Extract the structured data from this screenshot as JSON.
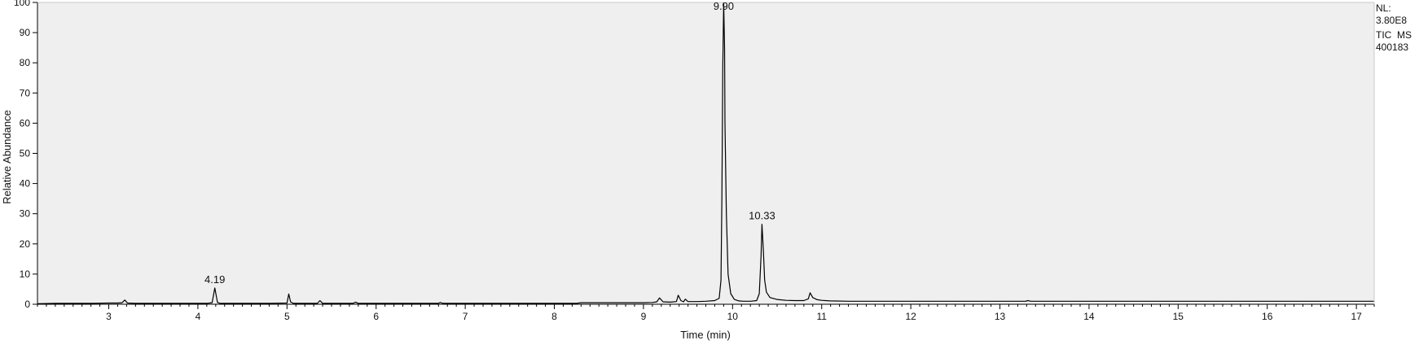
{
  "chart_data": {
    "type": "line",
    "xlabel": "Time (min)",
    "ylabel": "Relative Abundance",
    "xlim": [
      2.2,
      17.2
    ],
    "ylim": [
      0,
      100
    ],
    "xticks": [
      3,
      4,
      5,
      6,
      7,
      8,
      9,
      10,
      11,
      12,
      13,
      14,
      15,
      16,
      17
    ],
    "yticks": [
      0,
      10,
      20,
      30,
      40,
      50,
      60,
      70,
      80,
      90,
      100
    ],
    "grid": false,
    "plot_background": "#efefef",
    "line_color": "#000000",
    "info_text": [
      "NL:",
      "3.80E8",
      "TIC  MS",
      "400183"
    ],
    "peak_labels": [
      {
        "x": 4.19,
        "y": 5.4,
        "text": "4.19"
      },
      {
        "x": 9.9,
        "y": 100,
        "text": "9.90"
      },
      {
        "x": 10.33,
        "y": 26.5,
        "text": "10.33"
      }
    ],
    "series": [
      {
        "x": [
          2.2,
          2.4,
          2.6,
          2.8,
          3.0,
          3.1,
          3.15,
          3.18,
          3.21,
          3.3,
          3.5,
          3.7,
          3.9,
          4.1,
          4.16,
          4.19,
          4.22,
          4.25,
          4.5,
          4.8,
          5.0,
          5.02,
          5.04,
          5.07,
          5.2,
          5.34,
          5.37,
          5.4,
          5.6,
          5.74,
          5.77,
          5.8,
          6.0,
          6.5,
          6.7,
          6.72,
          6.75,
          7.0,
          7.5,
          8.0,
          8.25,
          8.3,
          8.5,
          8.8,
          9.0,
          9.1,
          9.15,
          9.18,
          9.22,
          9.3,
          9.37,
          9.39,
          9.42,
          9.45,
          9.47,
          9.5,
          9.6,
          9.7,
          9.8,
          9.85,
          9.87,
          9.88,
          9.89,
          9.9,
          9.91,
          9.915,
          9.93,
          9.95,
          9.98,
          10.02,
          10.07,
          10.12,
          10.2,
          10.27,
          10.3,
          10.32,
          10.33,
          10.345,
          10.36,
          10.38,
          10.42,
          10.5,
          10.6,
          10.7,
          10.8,
          10.85,
          10.87,
          10.9,
          10.95,
          11.0,
          11.1,
          11.3,
          11.6,
          12.0,
          12.5,
          13.0,
          13.29,
          13.31,
          13.35,
          14.0,
          15.0,
          16.0,
          17.0,
          17.2
        ],
        "values": [
          0.2,
          0.3,
          0.3,
          0.3,
          0.4,
          0.4,
          0.5,
          1.4,
          0.4,
          0.3,
          0.3,
          0.3,
          0.3,
          0.3,
          0.5,
          5.4,
          0.6,
          0.3,
          0.3,
          0.3,
          0.4,
          3.4,
          0.8,
          0.3,
          0.3,
          0.3,
          1.2,
          0.3,
          0.3,
          0.3,
          0.7,
          0.3,
          0.3,
          0.3,
          0.3,
          0.6,
          0.3,
          0.3,
          0.3,
          0.3,
          0.3,
          0.5,
          0.5,
          0.5,
          0.5,
          0.6,
          0.8,
          2.1,
          0.8,
          0.7,
          0.9,
          3.0,
          1.2,
          0.8,
          1.7,
          0.9,
          0.9,
          1.0,
          1.2,
          2.0,
          8.0,
          35.0,
          78.0,
          100,
          85.0,
          60.0,
          30.0,
          10.0,
          3.5,
          1.6,
          1.1,
          1.0,
          1.0,
          1.2,
          3.5,
          16.0,
          26.5,
          18.0,
          8.0,
          4.0,
          2.2,
          1.6,
          1.3,
          1.2,
          1.2,
          1.8,
          3.8,
          2.2,
          1.5,
          1.3,
          1.1,
          1.0,
          1.0,
          1.0,
          1.0,
          1.0,
          1.0,
          1.2,
          1.0,
          1.0,
          1.0,
          1.0,
          1.0,
          1.0
        ]
      }
    ]
  }
}
